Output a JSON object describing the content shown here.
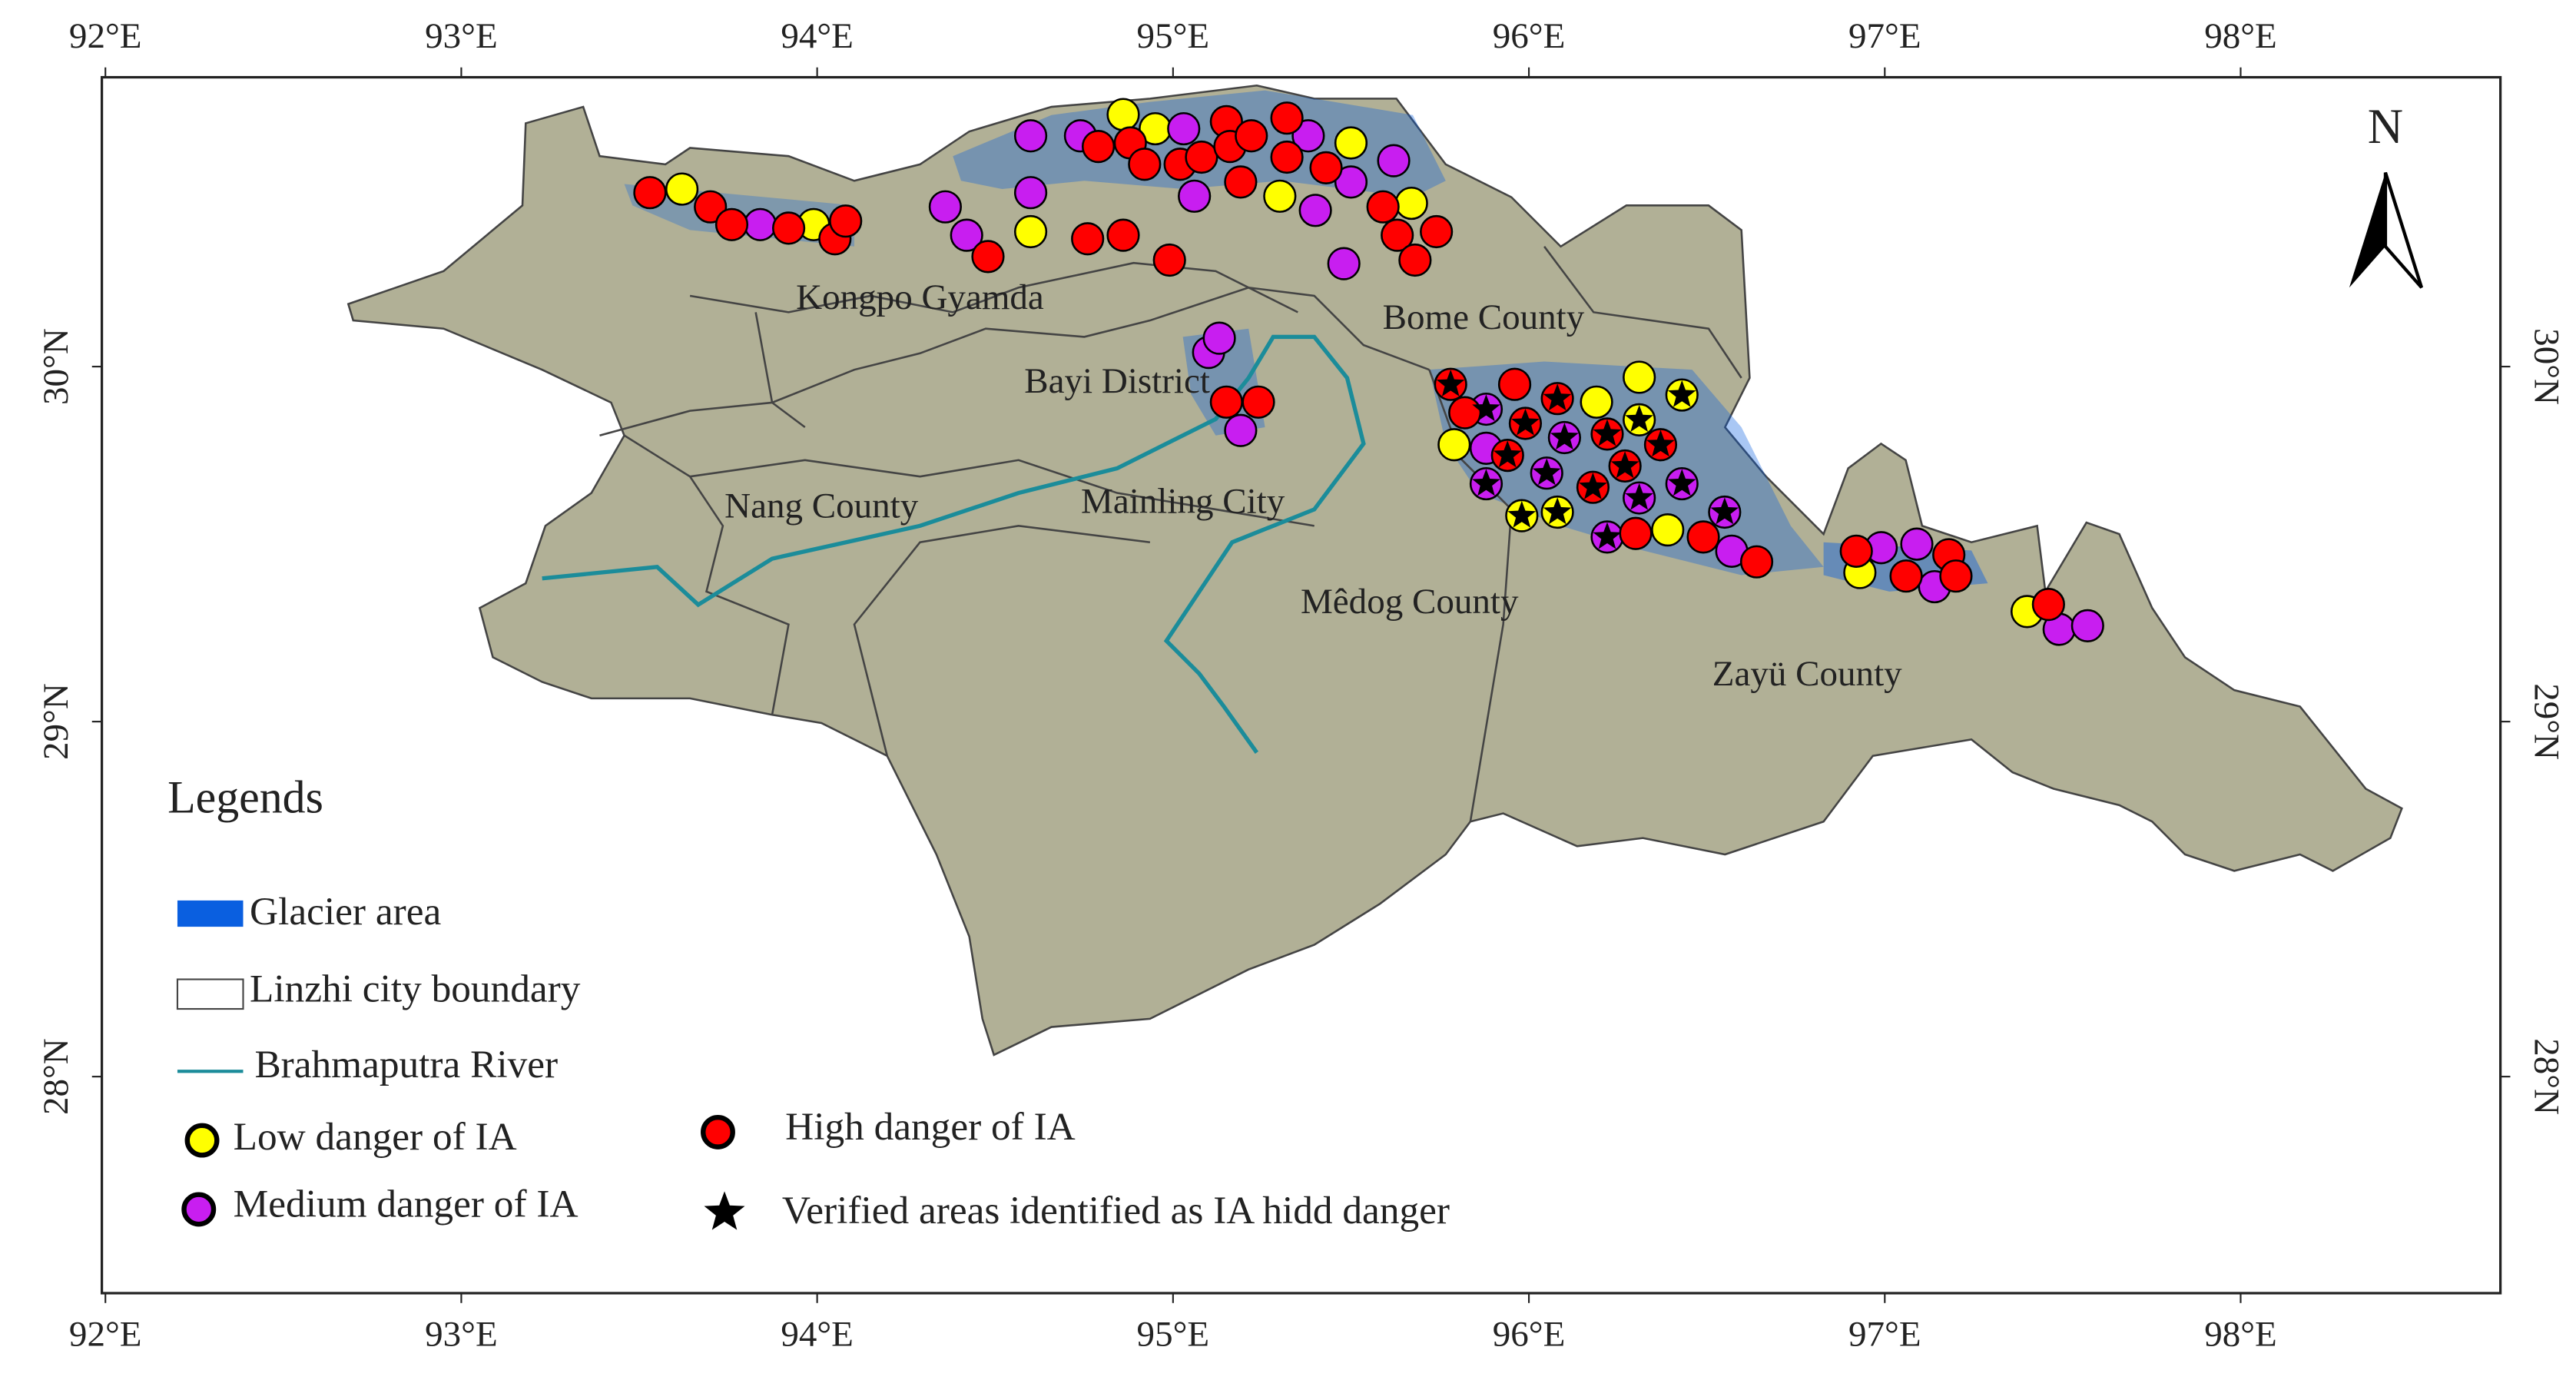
{
  "chart_data": {
    "type": "map",
    "xlim": [
      91.99,
      98.73
    ],
    "ylim": [
      27.39,
      30.815
    ],
    "xticks": [
      {
        "value": 92,
        "label": "92°E"
      },
      {
        "value": 93,
        "label": "93°E"
      },
      {
        "value": 94,
        "label": "94°E"
      },
      {
        "value": 95,
        "label": "95°E"
      },
      {
        "value": 96,
        "label": "96°E"
      },
      {
        "value": 97,
        "label": "97°E"
      },
      {
        "value": 98,
        "label": "98°E"
      }
    ],
    "yticks": [
      {
        "value": 30,
        "label": "30°N"
      },
      {
        "value": 29,
        "label": "29°N"
      },
      {
        "value": 28,
        "label": "28°N"
      }
    ],
    "north": "N",
    "places": [
      "Kongpo Gyamda",
      "Bome County",
      "Bayi District",
      "Nang County",
      "Mainling City",
      "Mêdog County",
      "Zayü County"
    ],
    "legend": {
      "title": "Legends",
      "items": [
        "Glacier area",
        "Linzhi city boundary",
        "Brahmaputra River"
      ]
    },
    "series": [
      {
        "name": "Low danger of IA",
        "color": "#ffff00",
        "x": [
          93.62,
          93.99,
          94.6,
          94.86,
          94.95,
          95.3,
          95.5,
          95.67,
          95.79,
          95.98,
          96.08,
          96.19,
          96.31,
          96.31,
          96.39,
          96.43,
          96.93,
          97.4
        ],
        "y": [
          30.5,
          30.4,
          30.38,
          30.71,
          30.67,
          30.48,
          30.63,
          30.46,
          29.78,
          29.58,
          29.59,
          29.9,
          29.97,
          29.85,
          29.54,
          29.92,
          29.42,
          29.31
        ]
      },
      {
        "name": "Medium danger of IA",
        "color": "#c81ef0",
        "x": [
          93.84,
          94.36,
          94.42,
          94.6,
          94.6,
          94.74,
          95.03,
          95.06,
          95.38,
          95.4,
          95.48,
          95.5,
          95.62,
          95.1,
          95.13,
          95.19,
          95.88,
          95.88,
          95.88,
          96.05,
          96.1,
          96.22,
          96.31,
          96.43,
          96.55,
          96.57,
          96.99,
          97.09,
          97.14,
          97.49,
          97.57
        ],
        "y": [
          30.4,
          30.45,
          30.37,
          30.65,
          30.49,
          30.65,
          30.67,
          30.48,
          30.65,
          30.44,
          30.29,
          30.52,
          30.58,
          30.04,
          30.08,
          29.82,
          29.88,
          29.77,
          29.67,
          29.7,
          29.8,
          29.52,
          29.63,
          29.67,
          29.59,
          29.48,
          29.49,
          29.5,
          29.38,
          29.26,
          29.27
        ]
      },
      {
        "name": "High danger of IA",
        "color": "#ff0000",
        "x": [
          93.53,
          93.7,
          93.76,
          93.92,
          94.05,
          94.08,
          94.48,
          94.76,
          94.79,
          94.86,
          94.88,
          94.92,
          94.99,
          95.02,
          95.08,
          95.15,
          95.16,
          95.19,
          95.22,
          95.32,
          95.32,
          95.43,
          95.59,
          95.63,
          95.68,
          95.74,
          95.15,
          95.24,
          95.78,
          95.82,
          95.94,
          95.96,
          95.99,
          96.08,
          96.18,
          96.22,
          96.27,
          96.3,
          96.37,
          96.49,
          96.64,
          96.92,
          97.06,
          97.18,
          97.2,
          97.46
        ],
        "y": [
          30.49,
          30.45,
          30.4,
          30.39,
          30.36,
          30.41,
          30.31,
          30.36,
          30.62,
          30.37,
          30.63,
          30.57,
          30.3,
          30.57,
          30.59,
          30.69,
          30.62,
          30.52,
          30.65,
          30.7,
          30.59,
          30.56,
          30.45,
          30.37,
          30.3,
          30.38,
          29.9,
          29.9,
          29.95,
          29.87,
          29.75,
          29.95,
          29.84,
          29.91,
          29.66,
          29.81,
          29.72,
          29.53,
          29.78,
          29.52,
          29.45,
          29.48,
          29.41,
          29.47,
          29.41,
          29.33
        ]
      },
      {
        "name": "Verified areas identified as  IA hidd danger",
        "color": "#000000",
        "x": [
          95.98,
          96.08,
          96.31,
          96.43,
          95.88,
          95.88,
          96.05,
          96.1,
          96.22,
          96.31,
          96.43,
          96.55,
          95.78,
          95.94,
          95.99,
          96.08,
          96.18,
          96.22,
          96.27,
          96.37
        ],
        "y": [
          29.58,
          29.59,
          29.85,
          29.92,
          29.88,
          29.67,
          29.7,
          29.8,
          29.52,
          29.63,
          29.67,
          29.59,
          29.95,
          29.75,
          29.84,
          29.91,
          29.66,
          29.81,
          29.72,
          29.78
        ]
      }
    ]
  }
}
